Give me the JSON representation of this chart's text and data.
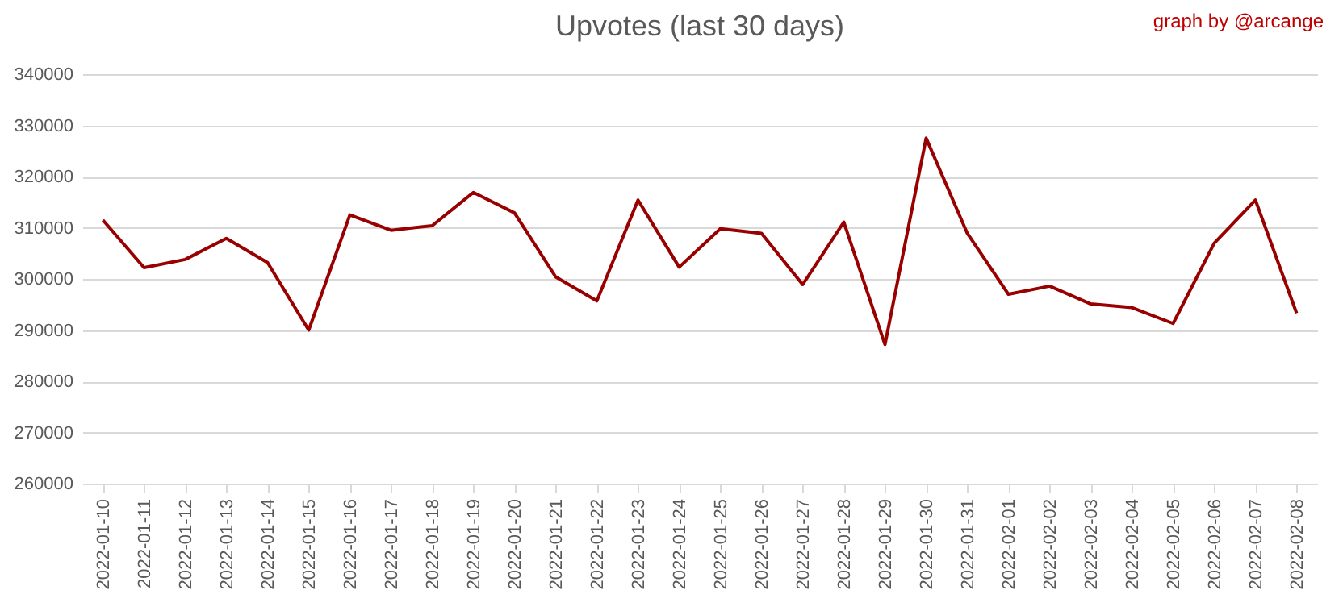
{
  "chart_data": {
    "type": "line",
    "title": "Upvotes (last 30 days)",
    "annotations": [
      "graph by @arcange"
    ],
    "categories": [
      "2022-01-10",
      "2022-01-11",
      "2022-01-12",
      "2022-01-13",
      "2022-01-14",
      "2022-01-15",
      "2022-01-16",
      "2022-01-17",
      "2022-01-18",
      "2022-01-19",
      "2022-01-20",
      "2022-01-21",
      "2022-01-22",
      "2022-01-23",
      "2022-01-24",
      "2022-01-25",
      "2022-01-26",
      "2022-01-27",
      "2022-01-28",
      "2022-01-29",
      "2022-01-30",
      "2022-01-31",
      "2022-02-01",
      "2022-02-02",
      "2022-02-03",
      "2022-02-04",
      "2022-02-05",
      "2022-02-06",
      "2022-02-07",
      "2022-02-08"
    ],
    "series": [
      {
        "color": "#990000",
        "values": [
          311500,
          302200,
          303800,
          307900,
          303200,
          290000,
          312500,
          309500,
          310400,
          316900,
          312900,
          300400,
          295700,
          315400,
          302300,
          309800,
          308900,
          298900,
          311100,
          287200,
          327500,
          308900,
          297000,
          298600,
          295100,
          294400,
          291300,
          307000,
          315400,
          293300
        ]
      }
    ],
    "ylim": [
      260000,
      340000
    ],
    "yticks": [
      260000,
      270000,
      280000,
      290000,
      300000,
      310000,
      320000,
      330000,
      340000
    ],
    "grid": "y",
    "legend": false,
    "marker": "none",
    "line_style": "solid"
  }
}
